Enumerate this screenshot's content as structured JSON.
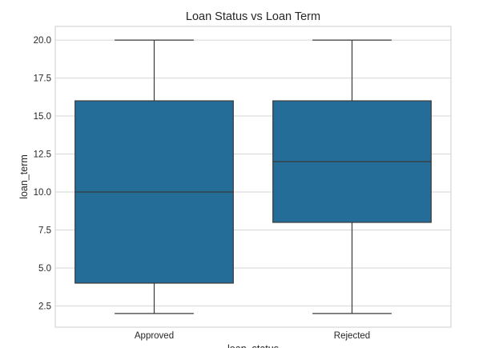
{
  "chart_data": {
    "type": "boxplot",
    "title": "Loan Status vs Loan Term",
    "xlabel": "loan_status",
    "ylabel": "loan_term",
    "categories": [
      "Approved",
      "Rejected"
    ],
    "boxes": [
      {
        "category": "Approved",
        "whisker_low": 2,
        "q1": 4,
        "median": 10,
        "q3": 16,
        "whisker_high": 20
      },
      {
        "category": "Rejected",
        "whisker_low": 2,
        "q1": 8,
        "median": 12,
        "q3": 16,
        "whisker_high": 20
      }
    ],
    "yticks": [
      "2.5",
      "5.0",
      "7.5",
      "10.0",
      "12.5",
      "15.0",
      "17.5",
      "20.0"
    ],
    "ylim": [
      1.1,
      20.9
    ],
    "grid": true,
    "box_color": "#236d98",
    "line_color": "#3a3a3a"
  }
}
